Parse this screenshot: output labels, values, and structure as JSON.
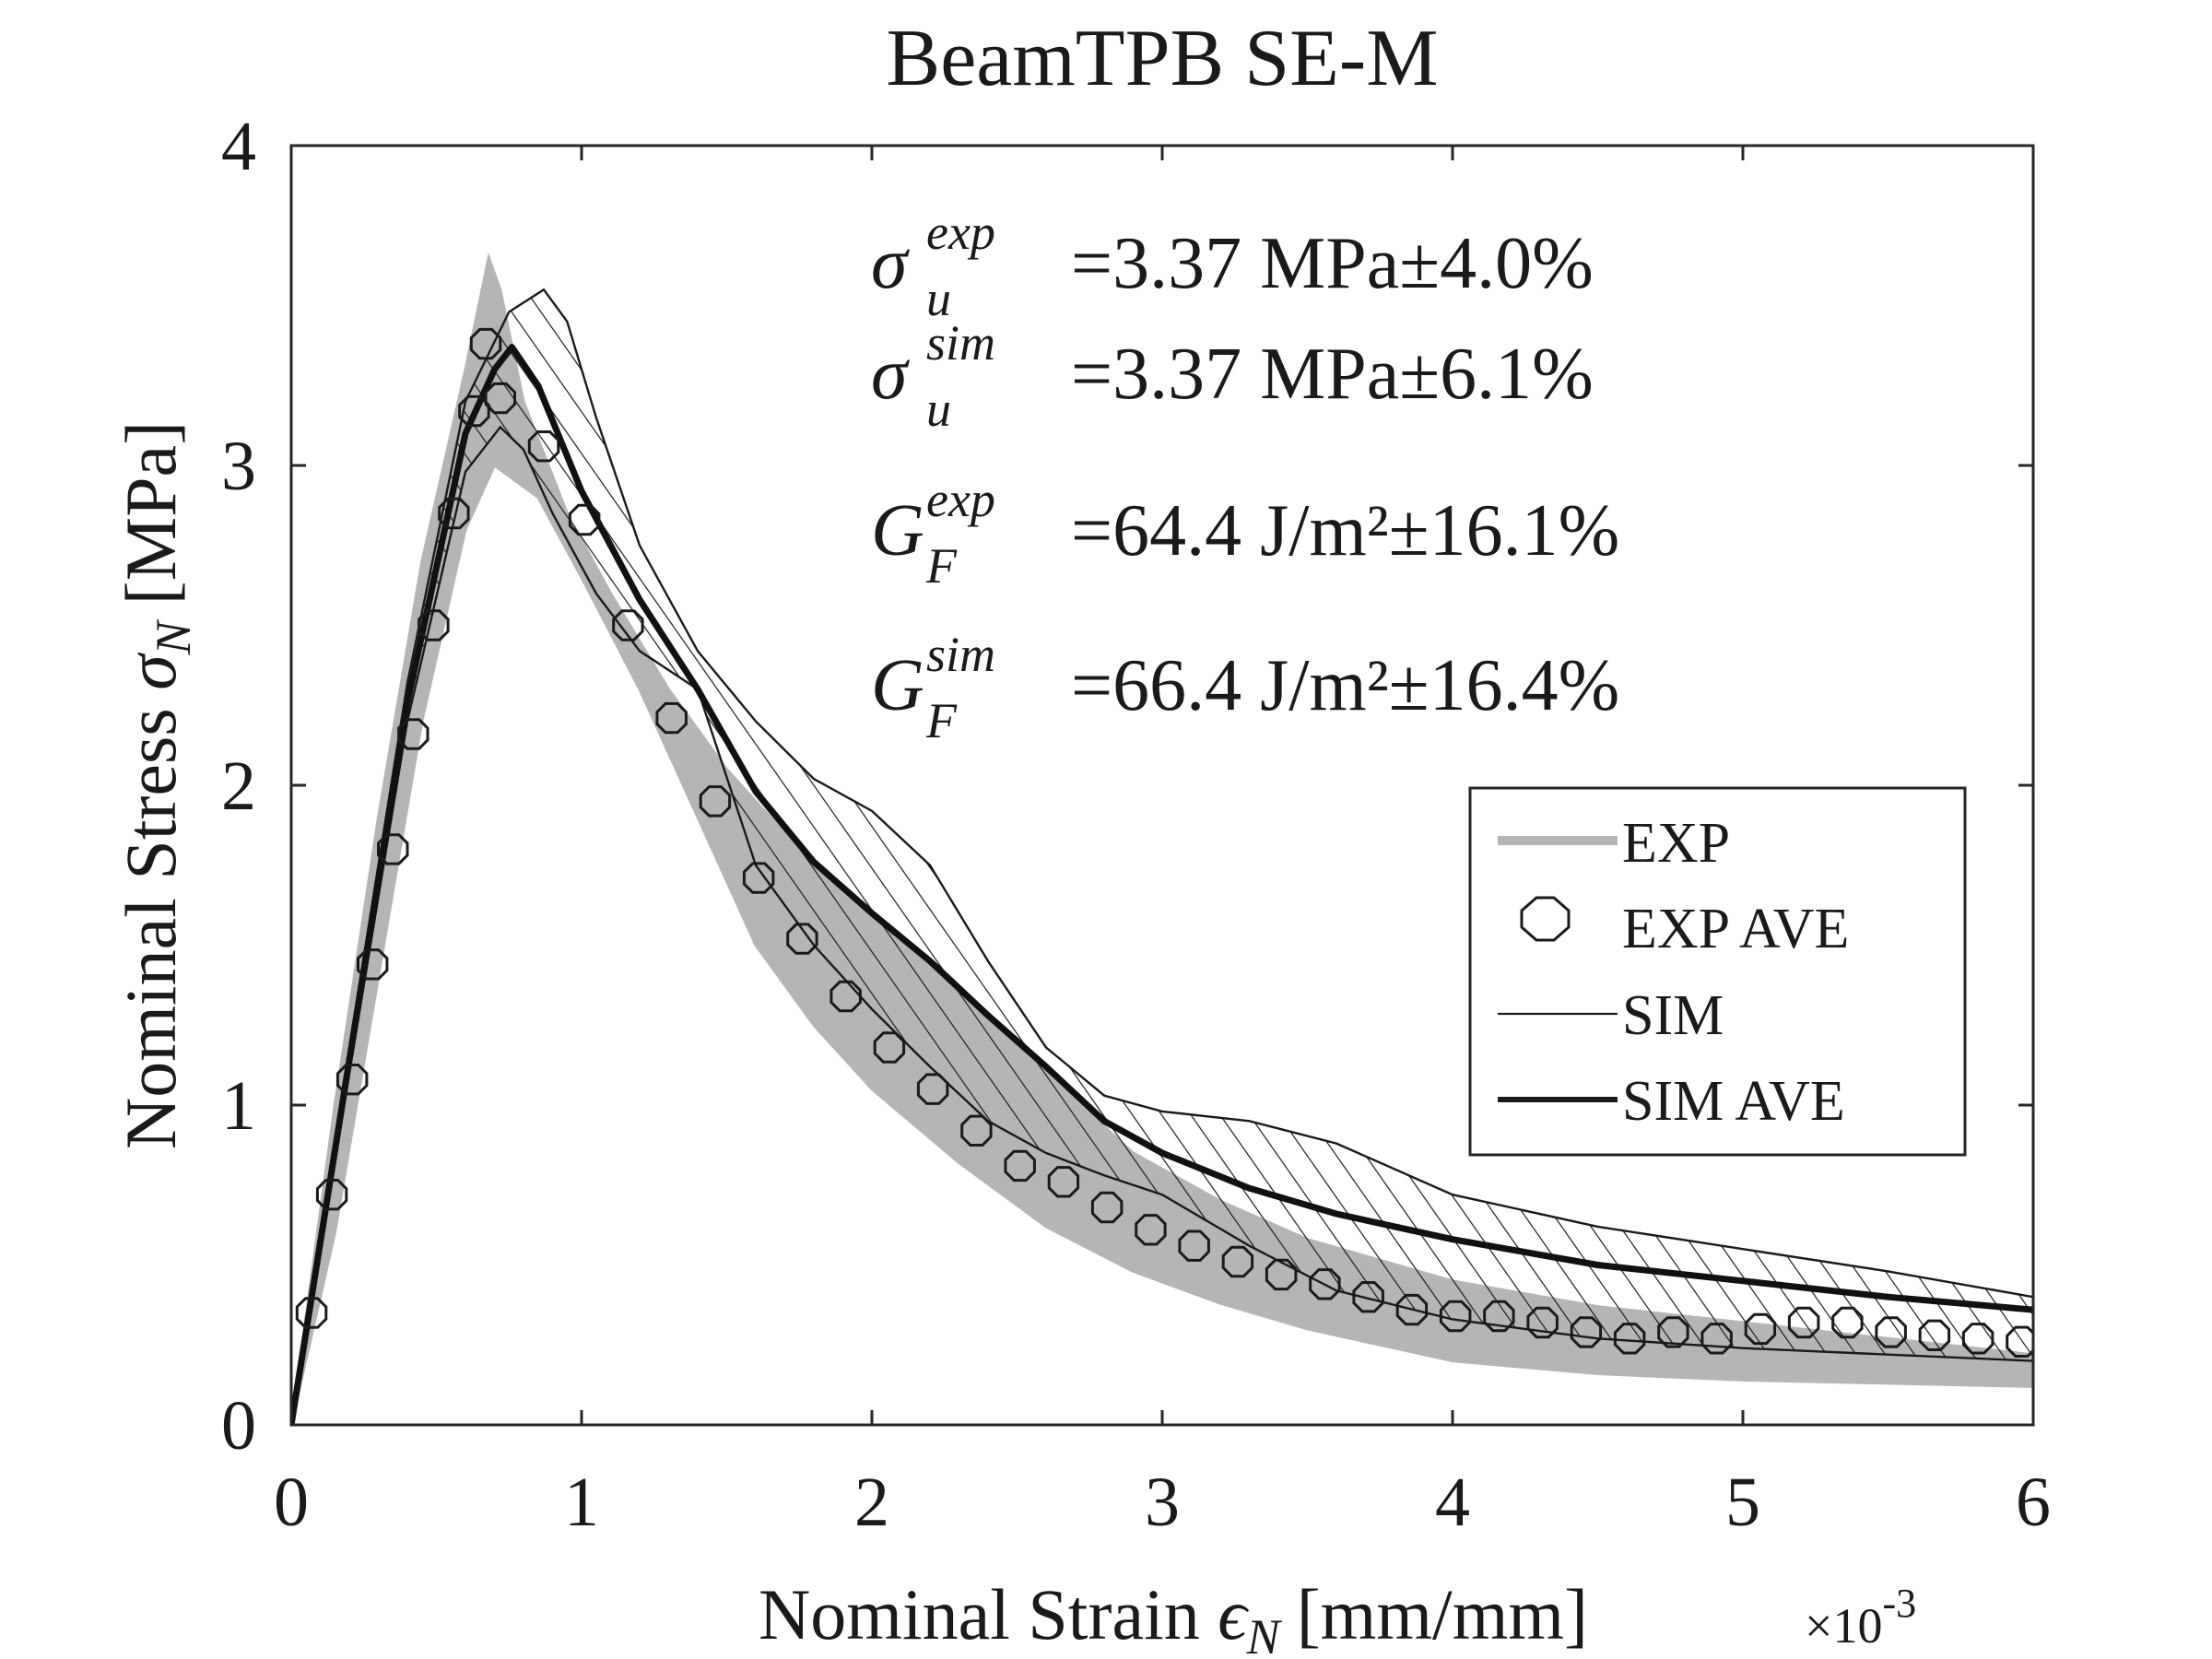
{
  "chart_data": {
    "type": "line",
    "title": "BeamTPB SE-M",
    "xlabel": {
      "prefix": "Nominal Strain ",
      "symbol": "ϵ",
      "sub": "N",
      "unit": "[mm/mm]"
    },
    "ylabel": {
      "prefix": "Nominal Stress ",
      "symbol": "σ",
      "sub": "N",
      "unit": "[MPa]"
    },
    "x_multiplier": {
      "base": "×10",
      "exp": "-3"
    },
    "xlim": [
      0,
      6
    ],
    "ylim": [
      0,
      4
    ],
    "xticks": [
      "0",
      "1",
      "2",
      "3",
      "4",
      "5",
      "6"
    ],
    "yticks": [
      "0",
      "1",
      "2",
      "3",
      "4"
    ],
    "annotations": [
      {
        "sym": "σ",
        "sup": "exp",
        "sub": "u",
        "text": "=3.37 MPa±4.0%"
      },
      {
        "sym": "σ",
        "sup": "sim",
        "sub": "u",
        "text": "=3.37 MPa±6.1%"
      },
      {
        "sym": "G",
        "sup": "exp",
        "sub": "F",
        "text": "=64.4 J/m²±16.1%"
      },
      {
        "sym": "G",
        "sup": "sim",
        "sub": "F",
        "text": "=66.4 J/m²±16.4%"
      }
    ],
    "legend": {
      "position": "right-middle",
      "entries": [
        "EXP",
        "EXP AVE",
        "SIM",
        "SIM AVE"
      ]
    },
    "series": [
      {
        "name": "EXP",
        "style": "gray band (envelope of experiments)",
        "color": "#b5b5b5",
        "upper": {
          "x": [
            0,
            0.15,
            0.3,
            0.45,
            0.6,
            0.68,
            0.72,
            0.8,
            0.95,
            1.1,
            1.3,
            1.5,
            1.7,
            2.0,
            2.3,
            2.6,
            2.9,
            3.2,
            3.5,
            4.0,
            4.5,
            5.0,
            5.5,
            6.0
          ],
          "y": [
            0,
            1.0,
            1.9,
            2.7,
            3.3,
            3.65,
            3.55,
            3.2,
            2.85,
            2.6,
            2.3,
            2.05,
            1.85,
            1.6,
            1.35,
            1.1,
            0.85,
            0.7,
            0.58,
            0.45,
            0.37,
            0.32,
            0.27,
            0.22
          ]
        },
        "lower": {
          "x": [
            0,
            0.15,
            0.3,
            0.45,
            0.6,
            0.7,
            0.85,
            1.0,
            1.2,
            1.4,
            1.6,
            1.8,
            2.0,
            2.3,
            2.6,
            2.9,
            3.2,
            3.5,
            4.0,
            4.5,
            5.0,
            5.5,
            6.0
          ],
          "y": [
            0,
            0.6,
            1.4,
            2.2,
            2.8,
            3.0,
            2.9,
            2.65,
            2.3,
            1.9,
            1.5,
            1.25,
            1.05,
            0.82,
            0.62,
            0.48,
            0.38,
            0.3,
            0.2,
            0.16,
            0.14,
            0.13,
            0.12
          ]
        }
      },
      {
        "name": "EXP AVE",
        "style": "open circles",
        "x": [
          0.07,
          0.14,
          0.21,
          0.28,
          0.35,
          0.42,
          0.49,
          0.56,
          0.63,
          0.67,
          0.72,
          0.87,
          1.01,
          1.16,
          1.31,
          1.46,
          1.61,
          1.76,
          1.91,
          2.06,
          2.21,
          2.36,
          2.51,
          2.66,
          2.81,
          2.96,
          3.11,
          3.26,
          3.41,
          3.56,
          3.71,
          3.86,
          4.01,
          4.16,
          4.31,
          4.46,
          4.61,
          4.76,
          4.91,
          5.06,
          5.21,
          5.36,
          5.51,
          5.66,
          5.81,
          5.96
        ],
        "y": [
          0.35,
          0.72,
          1.08,
          1.44,
          1.8,
          2.16,
          2.5,
          2.85,
          3.17,
          3.38,
          3.21,
          3.06,
          2.83,
          2.5,
          2.21,
          1.95,
          1.71,
          1.52,
          1.34,
          1.18,
          1.05,
          0.92,
          0.81,
          0.76,
          0.68,
          0.61,
          0.56,
          0.51,
          0.47,
          0.44,
          0.4,
          0.36,
          0.34,
          0.34,
          0.32,
          0.29,
          0.27,
          0.29,
          0.27,
          0.3,
          0.32,
          0.32,
          0.29,
          0.28,
          0.27,
          0.26
        ]
      },
      {
        "name": "SIM",
        "style": "hatched band between thin lines",
        "upper": {
          "x": [
            0,
            0.2,
            0.4,
            0.6,
            0.75,
            0.87,
            0.95,
            1.05,
            1.2,
            1.4,
            1.6,
            1.8,
            2.0,
            2.2,
            2.4,
            2.6,
            2.8,
            3.0,
            3.3,
            3.6,
            4.0,
            4.5,
            5.0,
            5.5,
            6.0
          ],
          "y": [
            0,
            1.18,
            2.32,
            3.2,
            3.48,
            3.55,
            3.45,
            3.15,
            2.75,
            2.42,
            2.2,
            2.02,
            1.92,
            1.75,
            1.45,
            1.18,
            1.03,
            0.98,
            0.95,
            0.88,
            0.72,
            0.62,
            0.55,
            0.48,
            0.4
          ]
        },
        "lower": {
          "x": [
            0,
            0.2,
            0.4,
            0.6,
            0.72,
            0.8,
            0.9,
            1.05,
            1.2,
            1.4,
            1.6,
            1.8,
            2.0,
            2.2,
            2.4,
            2.6,
            2.8,
            3.0,
            3.3,
            3.6,
            4.0,
            4.5,
            5.0,
            5.5,
            6.0
          ],
          "y": [
            0,
            1.1,
            2.2,
            2.98,
            3.12,
            3.05,
            2.85,
            2.6,
            2.42,
            2.3,
            1.75,
            1.5,
            1.3,
            1.12,
            0.95,
            0.85,
            0.78,
            0.72,
            0.56,
            0.42,
            0.33,
            0.27,
            0.24,
            0.22,
            0.2
          ]
        }
      },
      {
        "name": "SIM AVE",
        "style": "thick black line",
        "x": [
          0,
          0.2,
          0.4,
          0.6,
          0.7,
          0.76,
          0.85,
          1.0,
          1.2,
          1.4,
          1.6,
          1.8,
          2.0,
          2.2,
          2.4,
          2.6,
          2.8,
          3.0,
          3.3,
          3.6,
          4.0,
          4.5,
          5.0,
          5.5,
          6.0
        ],
        "y": [
          0,
          1.14,
          2.26,
          3.1,
          3.3,
          3.37,
          3.25,
          2.92,
          2.58,
          2.3,
          1.98,
          1.76,
          1.6,
          1.45,
          1.28,
          1.12,
          0.95,
          0.85,
          0.74,
          0.66,
          0.58,
          0.5,
          0.45,
          0.4,
          0.36
        ]
      }
    ]
  }
}
